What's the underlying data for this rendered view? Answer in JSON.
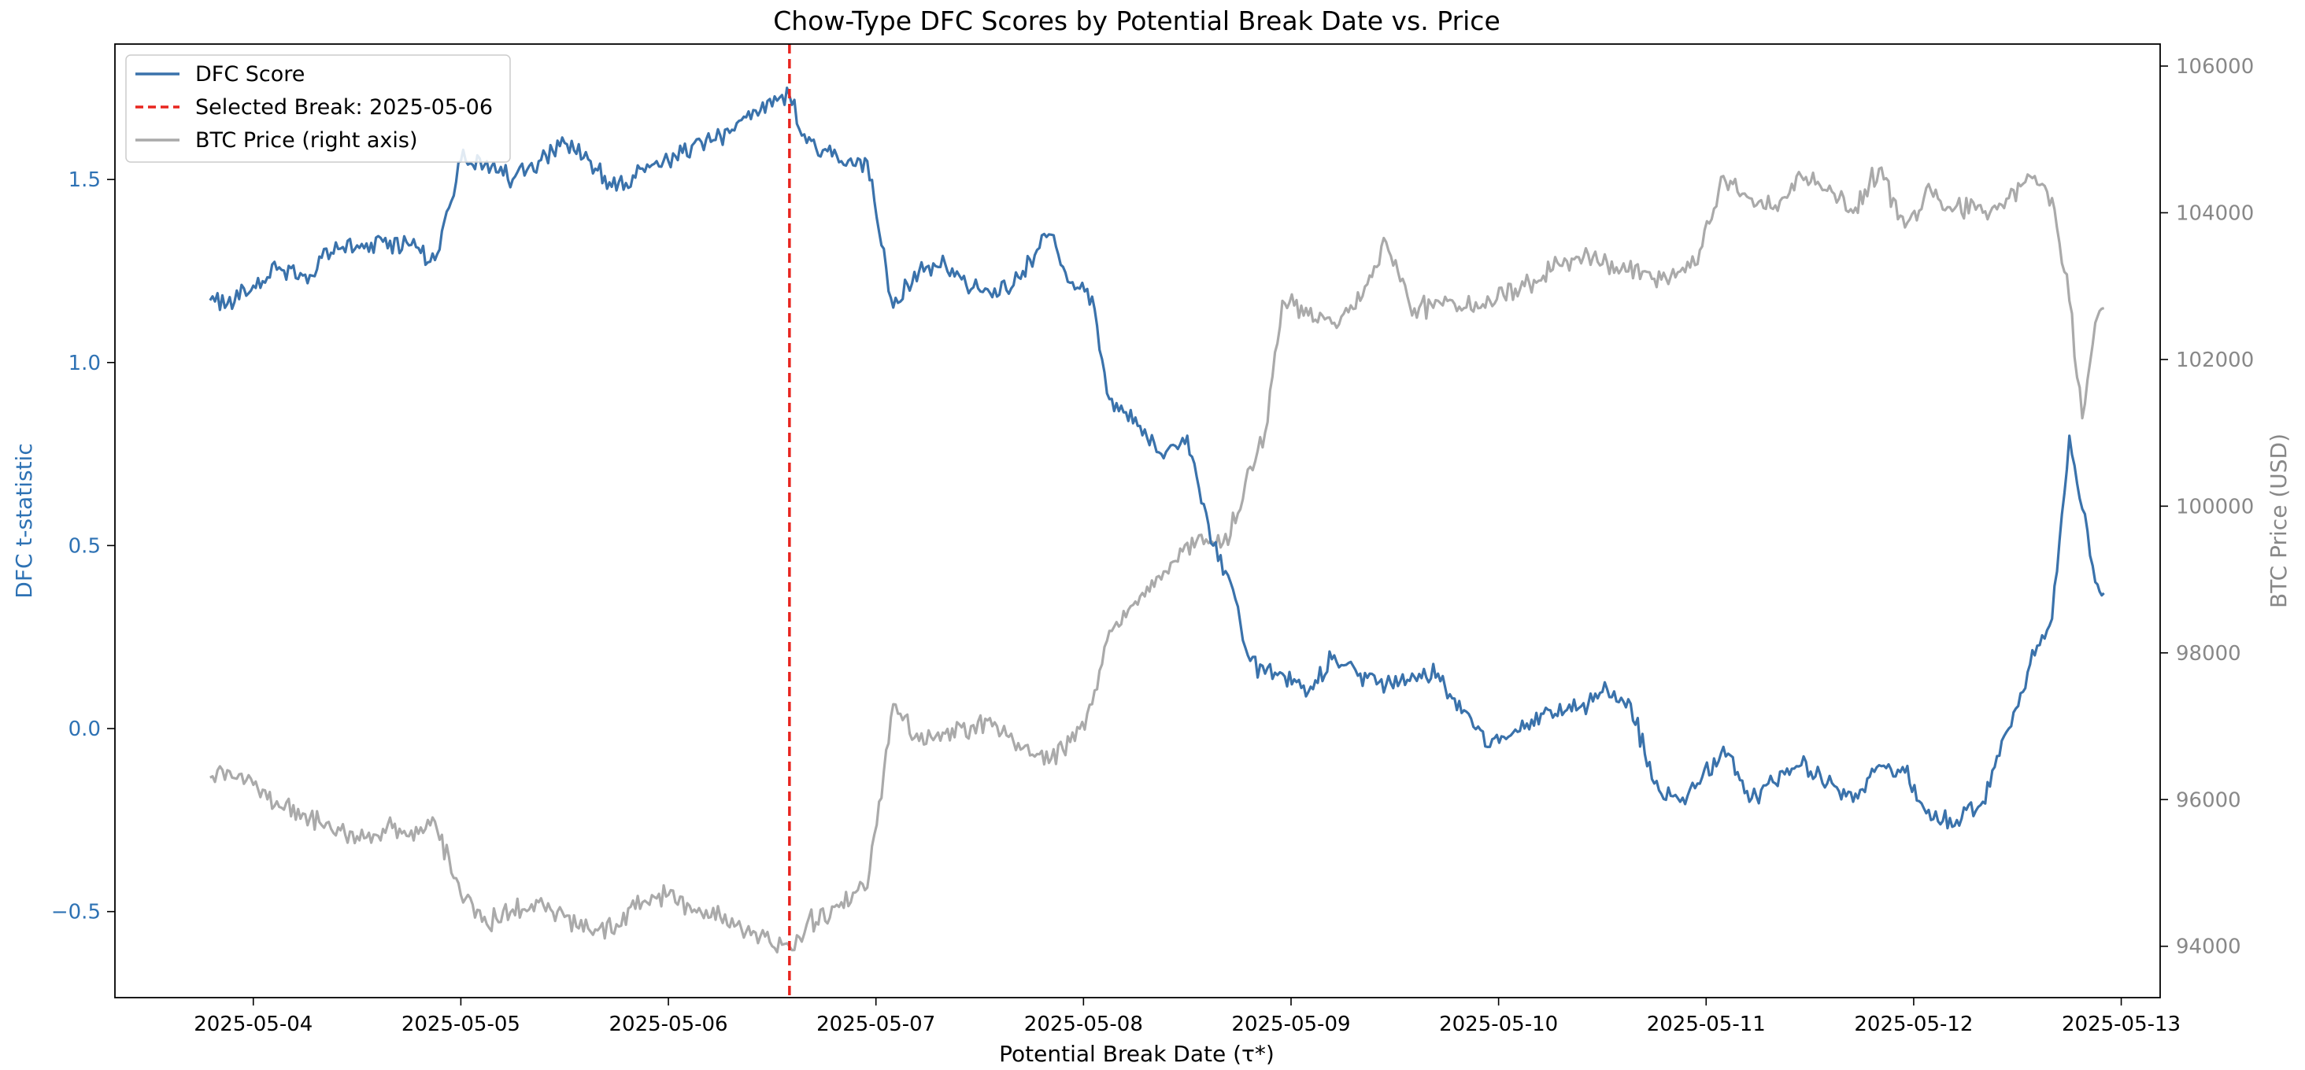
{
  "chart_data": {
    "type": "line",
    "title": "Chow-Type DFC Scores by Potential Break Date vs. Price",
    "xlabel": "Potential Break Date (τ*)",
    "ylabel_left": "DFC t-statistic",
    "ylabel_right": "BTC Price (USD)",
    "x_ticks": [
      "2025-05-04",
      "2025-05-05",
      "2025-05-06",
      "2025-05-07",
      "2025-05-08",
      "2025-05-09",
      "2025-05-10",
      "2025-05-11",
      "2025-05-12",
      "2025-05-13"
    ],
    "y_left_ticks": [
      "−0.5",
      "0.0",
      "0.5",
      "1.0",
      "1.5"
    ],
    "y_left_tick_values": [
      -0.5,
      0.0,
      0.5,
      1.0,
      1.5
    ],
    "y_right_ticks": [
      "94000",
      "96000",
      "98000",
      "100000",
      "102000",
      "104000",
      "106000"
    ],
    "y_right_tick_values": [
      94000,
      96000,
      98000,
      100000,
      102000,
      104000,
      106000
    ],
    "xlim": [
      "2025-05-03 08:00",
      "2025-05-13 04:30"
    ],
    "ylim_left": [
      -0.735,
      1.87
    ],
    "ylim_right": [
      93300,
      106300
    ],
    "grid": false,
    "legend_position": "top-left",
    "colors": {
      "dfc": "#3a72ab",
      "break": "#e8251f",
      "price": "#aaaaaa",
      "left_axis": "#2e72b4",
      "right_axis": "#888888"
    },
    "break_line": {
      "name": "Selected Break: 2025-05-06",
      "x": "2025-05-06 14:00"
    },
    "series": [
      {
        "name": "DFC Score",
        "axis": "left",
        "x": [
          "2025-05-03 19:00",
          "2025-05-03 21:00",
          "2025-05-04 00:00",
          "2025-05-04 03:00",
          "2025-05-04 06:00",
          "2025-05-04 09:00",
          "2025-05-04 12:00",
          "2025-05-04 15:00",
          "2025-05-04 18:00",
          "2025-05-04 21:00",
          "2025-05-05 00:00",
          "2025-05-05 03:00",
          "2025-05-05 06:00",
          "2025-05-05 09:00",
          "2025-05-05 12:00",
          "2025-05-05 15:00",
          "2025-05-05 18:00",
          "2025-05-05 21:00",
          "2025-05-06 00:00",
          "2025-05-06 03:00",
          "2025-05-06 06:00",
          "2025-05-06 09:00",
          "2025-05-06 12:00",
          "2025-05-06 14:00",
          "2025-05-06 16:00",
          "2025-05-06 20:00",
          "2025-05-06 23:00",
          "2025-05-07 02:00",
          "2025-05-07 05:00",
          "2025-05-07 08:00",
          "2025-05-07 11:00",
          "2025-05-07 14:00",
          "2025-05-07 17:00",
          "2025-05-07 20:00",
          "2025-05-07 23:00",
          "2025-05-08 01:00",
          "2025-05-08 03:00",
          "2025-05-08 06:00",
          "2025-05-08 09:00",
          "2025-05-08 12:00",
          "2025-05-08 15:00",
          "2025-05-08 17:00",
          "2025-05-08 19:00",
          "2025-05-08 21:00",
          "2025-05-08 23:00",
          "2025-05-09 02:00",
          "2025-05-09 05:00",
          "2025-05-09 08:00",
          "2025-05-09 11:00",
          "2025-05-09 14:00",
          "2025-05-09 17:00",
          "2025-05-09 20:00",
          "2025-05-09 23:00",
          "2025-05-10 03:00",
          "2025-05-10 06:00",
          "2025-05-10 09:00",
          "2025-05-10 12:00",
          "2025-05-10 15:00",
          "2025-05-10 18:00",
          "2025-05-10 21:00",
          "2025-05-10 23:00",
          "2025-05-11 02:00",
          "2025-05-11 05:00",
          "2025-05-11 08:00",
          "2025-05-11 11:00",
          "2025-05-11 14:00",
          "2025-05-11 17:00",
          "2025-05-11 20:00",
          "2025-05-11 23:00",
          "2025-05-12 02:00",
          "2025-05-12 05:00",
          "2025-05-12 08:00",
          "2025-05-12 11:00",
          "2025-05-12 14:00",
          "2025-05-12 16:00",
          "2025-05-12 18:00",
          "2025-05-12 19:30",
          "2025-05-12 21:00",
          "2025-05-12 22:00"
        ],
        "values": [
          1.17,
          1.16,
          1.21,
          1.26,
          1.24,
          1.3,
          1.32,
          1.33,
          1.32,
          1.28,
          1.55,
          1.55,
          1.5,
          1.55,
          1.6,
          1.55,
          1.47,
          1.53,
          1.55,
          1.6,
          1.62,
          1.67,
          1.7,
          1.73,
          1.6,
          1.55,
          1.55,
          1.15,
          1.25,
          1.27,
          1.2,
          1.18,
          1.25,
          1.35,
          1.2,
          1.18,
          0.9,
          0.85,
          0.75,
          0.8,
          0.5,
          0.4,
          0.2,
          0.15,
          0.15,
          0.1,
          0.2,
          0.15,
          0.12,
          0.15,
          0.15,
          0.05,
          -0.05,
          0.0,
          0.05,
          0.05,
          0.1,
          0.08,
          -0.15,
          -0.2,
          -0.15,
          -0.05,
          -0.2,
          -0.15,
          -0.1,
          -0.15,
          -0.2,
          -0.1,
          -0.12,
          -0.25,
          -0.25,
          -0.2,
          0.0,
          0.2,
          0.3,
          0.8,
          0.6,
          0.4,
          0.37
        ]
      },
      {
        "name": "BTC Price (right axis)",
        "axis": "right",
        "x": [
          "2025-05-03 19:00",
          "2025-05-03 21:00",
          "2025-05-04 00:00",
          "2025-05-04 03:00",
          "2025-05-04 06:00",
          "2025-05-04 09:00",
          "2025-05-04 12:00",
          "2025-05-04 15:00",
          "2025-05-04 18:00",
          "2025-05-04 21:00",
          "2025-05-05 00:00",
          "2025-05-05 03:00",
          "2025-05-05 06:00",
          "2025-05-05 09:00",
          "2025-05-05 12:00",
          "2025-05-05 15:00",
          "2025-05-05 18:00",
          "2025-05-05 21:00",
          "2025-05-06 00:00",
          "2025-05-06 03:00",
          "2025-05-06 06:00",
          "2025-05-06 09:00",
          "2025-05-06 12:00",
          "2025-05-06 14:00",
          "2025-05-06 16:00",
          "2025-05-06 20:00",
          "2025-05-06 23:00",
          "2025-05-07 02:00",
          "2025-05-07 05:00",
          "2025-05-07 08:00",
          "2025-05-07 11:00",
          "2025-05-07 14:00",
          "2025-05-07 17:00",
          "2025-05-07 20:00",
          "2025-05-07 23:00",
          "2025-05-08 01:00",
          "2025-05-08 03:00",
          "2025-05-08 06:00",
          "2025-05-08 09:00",
          "2025-05-08 12:00",
          "2025-05-08 15:00",
          "2025-05-08 17:00",
          "2025-05-08 19:00",
          "2025-05-08 21:00",
          "2025-05-08 23:00",
          "2025-05-09 02:00",
          "2025-05-09 05:00",
          "2025-05-09 08:00",
          "2025-05-09 11:00",
          "2025-05-09 14:00",
          "2025-05-09 17:00",
          "2025-05-09 20:00",
          "2025-05-09 23:00",
          "2025-05-10 03:00",
          "2025-05-10 06:00",
          "2025-05-10 09:00",
          "2025-05-10 12:00",
          "2025-05-10 15:00",
          "2025-05-10 18:00",
          "2025-05-10 21:00",
          "2025-05-10 23:00",
          "2025-05-11 02:00",
          "2025-05-11 05:00",
          "2025-05-11 08:00",
          "2025-05-11 11:00",
          "2025-05-11 14:00",
          "2025-05-11 17:00",
          "2025-05-11 20:00",
          "2025-05-11 23:00",
          "2025-05-12 02:00",
          "2025-05-12 05:00",
          "2025-05-12 08:00",
          "2025-05-12 11:00",
          "2025-05-12 14:00",
          "2025-05-12 16:00",
          "2025-05-12 18:00",
          "2025-05-12 19:30",
          "2025-05-12 21:00",
          "2025-05-12 22:00"
        ],
        "values": [
          96300,
          96400,
          96200,
          95900,
          95800,
          95600,
          95500,
          95600,
          95500,
          95700,
          94700,
          94300,
          94500,
          94600,
          94400,
          94200,
          94300,
          94600,
          94700,
          94500,
          94400,
          94200,
          94000,
          94000,
          94300,
          94600,
          94800,
          97300,
          96800,
          96900,
          97000,
          97000,
          96700,
          96500,
          96800,
          97300,
          98300,
          98700,
          99000,
          99500,
          99500,
          99600,
          100500,
          101000,
          102800,
          102600,
          102500,
          102800,
          103600,
          102600,
          102800,
          102700,
          102800,
          103000,
          103200,
          103400,
          103300,
          103200,
          103100,
          103200,
          103300,
          104500,
          104200,
          104100,
          104500,
          104300,
          104000,
          104600,
          103800,
          104300,
          104100,
          104000,
          104200,
          104500,
          104200,
          102800,
          101200,
          102500,
          102700
        ]
      }
    ]
  }
}
